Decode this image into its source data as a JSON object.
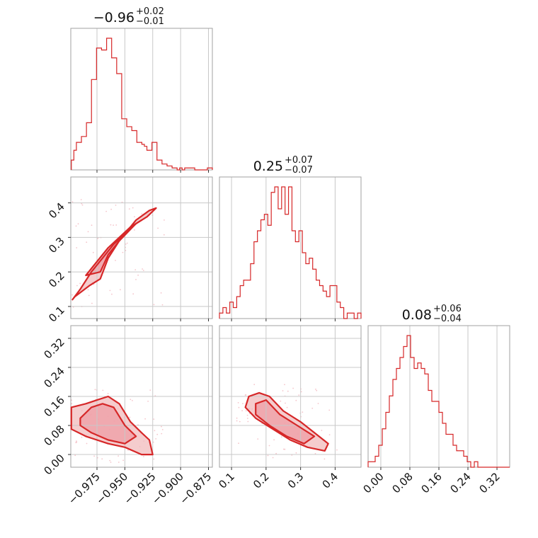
{
  "chart_data": {
    "type": "corner",
    "color": "#d62728",
    "fill_color": "#f4c6c8",
    "grid": true,
    "parameters": [
      {
        "median": "0.96",
        "sign": "−",
        "upper": "+0.02",
        "lower": "−0.01",
        "range": [
          -0.9985,
          -0.8715
        ],
        "ticks": [
          -0.975,
          -0.95,
          -0.925,
          -0.9,
          -0.875
        ],
        "tick_labels": [
          "−0.975",
          "−0.950",
          "−0.925",
          "−0.900",
          "−0.875"
        ],
        "hist": {
          "start": -0.998,
          "end": -0.8715,
          "counts": [
            5,
            10,
            14,
            14,
            17,
            17,
            24,
            24,
            46,
            46,
            62,
            62,
            61,
            61,
            67,
            67,
            57,
            57,
            49,
            49,
            26,
            26,
            22,
            22,
            20,
            20,
            14,
            14,
            13,
            12,
            10,
            10,
            14,
            14,
            5,
            5,
            3,
            3,
            2,
            2,
            1,
            1,
            0,
            1,
            0,
            1,
            1,
            1,
            1,
            0,
            0,
            0,
            0,
            0,
            1,
            1
          ]
        }
      },
      {
        "median": "0.25",
        "sign": "",
        "upper": "+0.07",
        "lower": "−0.07",
        "range": [
          0.065,
          0.475
        ],
        "ticks": [
          0.1,
          0.2,
          0.3,
          0.4
        ],
        "tick_labels": [
          "0.1",
          "0.2",
          "0.3",
          "0.4"
        ],
        "hist": {
          "start": 0.065,
          "end": 0.475,
          "counts": [
            1,
            2,
            1,
            3,
            2,
            4,
            6,
            7,
            7,
            10,
            14,
            16,
            18,
            19,
            17,
            23,
            24,
            20,
            24,
            19,
            24,
            16,
            14,
            16,
            12,
            10,
            11,
            9,
            7,
            6,
            5,
            4,
            6,
            6,
            3,
            2,
            0,
            1,
            1,
            0,
            1
          ]
        }
      },
      {
        "median": "0.08",
        "sign": "",
        "upper": "+0.06",
        "lower": "−0.04",
        "range": [
          -0.035,
          0.355
        ],
        "ticks": [
          0.0,
          0.08,
          0.16,
          0.24,
          0.32
        ],
        "tick_labels": [
          "0.00",
          "0.08",
          "0.16",
          "0.24",
          "0.32"
        ],
        "hist": {
          "start": -0.035,
          "end": 0.355,
          "counts": [
            1,
            1,
            2,
            4,
            7,
            10,
            13,
            16,
            18,
            20,
            22,
            24,
            20,
            18,
            19,
            18,
            17,
            14,
            12,
            12,
            10,
            8,
            6,
            6,
            4,
            3,
            3,
            2,
            1,
            0,
            1,
            0,
            0,
            0,
            0,
            0,
            0,
            0,
            0,
            0
          ]
        }
      }
    ],
    "contours": {
      "p1_vs_p0": [
        {
          "level": "outer",
          "points": [
            [
              -0.997,
              0.12
            ],
            [
              -0.99,
              0.15
            ],
            [
              -0.98,
              0.2
            ],
            [
              -0.97,
              0.24
            ],
            [
              -0.96,
              0.28
            ],
            [
              -0.95,
              0.31
            ],
            [
              -0.94,
              0.34
            ],
            [
              -0.93,
              0.36
            ],
            [
              -0.922,
              0.385
            ],
            [
              -0.928,
              0.378
            ],
            [
              -0.94,
              0.35
            ],
            [
              -0.955,
              0.29
            ],
            [
              -0.965,
              0.24
            ],
            [
              -0.972,
              0.18
            ],
            [
              -0.982,
              0.16
            ],
            [
              -0.995,
              0.128
            ]
          ]
        },
        {
          "level": "inner",
          "points": [
            [
              -0.985,
              0.19
            ],
            [
              -0.975,
              0.23
            ],
            [
              -0.965,
              0.27
            ],
            [
              -0.955,
              0.3
            ],
            [
              -0.945,
              0.33
            ],
            [
              -0.935,
              0.35
            ],
            [
              -0.94,
              0.34
            ],
            [
              -0.955,
              0.29
            ],
            [
              -0.965,
              0.25
            ],
            [
              -0.972,
              0.2
            ]
          ]
        }
      ],
      "p2_vs_p0": [
        {
          "level": "outer",
          "points": [
            [
              -0.998,
              0.13
            ],
            [
              -0.985,
              0.14
            ],
            [
              -0.975,
              0.15
            ],
            [
              -0.965,
              0.16
            ],
            [
              -0.955,
              0.14
            ],
            [
              -0.945,
              0.09
            ],
            [
              -0.935,
              0.06
            ],
            [
              -0.928,
              0.04
            ],
            [
              -0.925,
              0.0
            ],
            [
              -0.935,
              0.0
            ],
            [
              -0.95,
              0.02
            ],
            [
              -0.965,
              0.03
            ],
            [
              -0.985,
              0.05
            ],
            [
              -0.998,
              0.07
            ]
          ]
        },
        {
          "level": "inner",
          "points": [
            [
              -0.99,
              0.1
            ],
            [
              -0.98,
              0.13
            ],
            [
              -0.97,
              0.14
            ],
            [
              -0.96,
              0.13
            ],
            [
              -0.95,
              0.08
            ],
            [
              -0.94,
              0.05
            ],
            [
              -0.95,
              0.03
            ],
            [
              -0.965,
              0.04
            ],
            [
              -0.98,
              0.06
            ],
            [
              -0.99,
              0.08
            ]
          ]
        }
      ],
      "p2_vs_p1": [
        {
          "level": "outer",
          "points": [
            [
              0.15,
              0.16
            ],
            [
              0.18,
              0.17
            ],
            [
              0.21,
              0.16
            ],
            [
              0.25,
              0.12
            ],
            [
              0.3,
              0.09
            ],
            [
              0.34,
              0.06
            ],
            [
              0.38,
              0.03
            ],
            [
              0.37,
              0.01
            ],
            [
              0.32,
              0.02
            ],
            [
              0.27,
              0.04
            ],
            [
              0.22,
              0.07
            ],
            [
              0.17,
              0.1
            ],
            [
              0.14,
              0.13
            ]
          ]
        },
        {
          "level": "inner",
          "points": [
            [
              0.17,
              0.14
            ],
            [
              0.2,
              0.15
            ],
            [
              0.24,
              0.11
            ],
            [
              0.29,
              0.08
            ],
            [
              0.34,
              0.05
            ],
            [
              0.31,
              0.03
            ],
            [
              0.26,
              0.05
            ],
            [
              0.21,
              0.08
            ],
            [
              0.17,
              0.11
            ]
          ]
        }
      ]
    }
  }
}
